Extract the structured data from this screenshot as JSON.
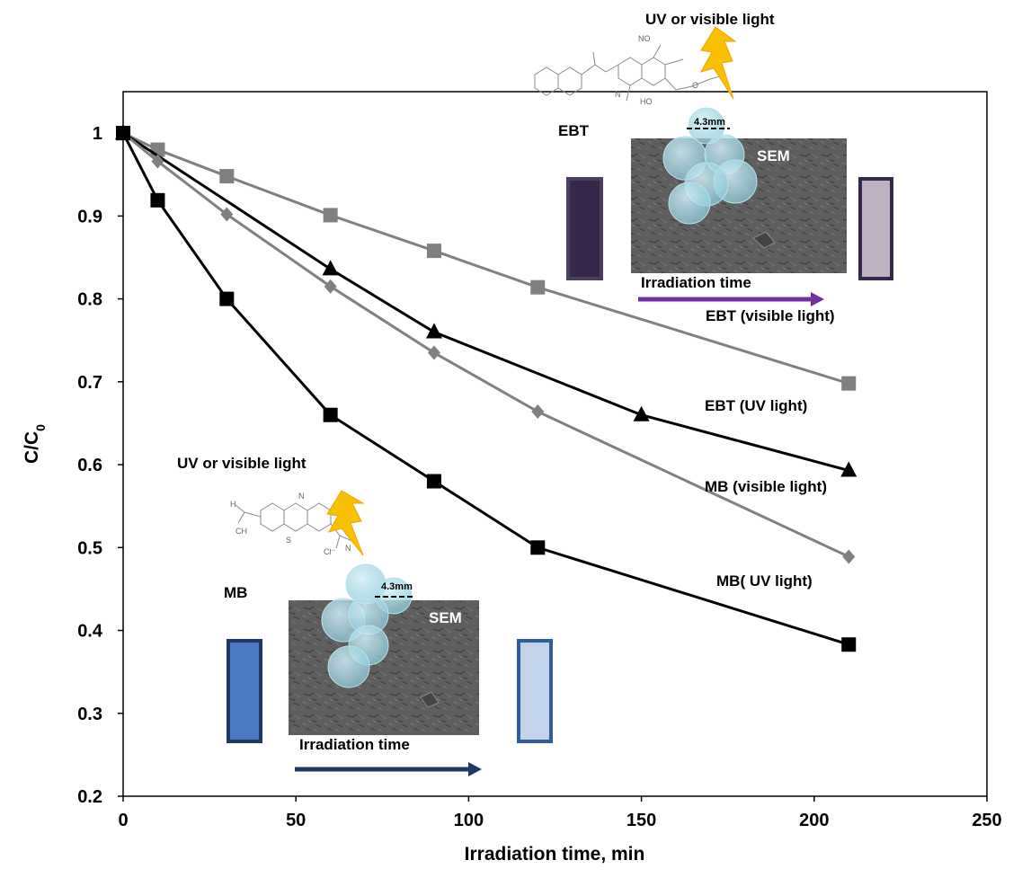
{
  "chart_data": {
    "type": "line",
    "xlabel": "Irradiation time, min",
    "ylabel": "C/C0",
    "ylabel_main": "C/C",
    "ylabel_sub": "0",
    "xlim": [
      0,
      250
    ],
    "ylim": [
      0.2,
      1.05
    ],
    "xticks": [
      "0",
      "50",
      "100",
      "150",
      "200",
      "250"
    ],
    "yticks": [
      "0.2",
      "0.3",
      "0.4",
      "0.5",
      "0.6",
      "0.7",
      "0.8",
      "0.9",
      "1"
    ],
    "grid": false,
    "series": [
      {
        "name": "EBT (visible light)",
        "color": "#808080",
        "marker": "square",
        "x": [
          0,
          10,
          30,
          60,
          90,
          120,
          210
        ],
        "y": [
          1.0,
          0.98,
          0.948,
          0.901,
          0.858,
          0.814,
          0.698
        ]
      },
      {
        "name": "EBT (UV light)",
        "color": "#000000",
        "marker": "triangle",
        "x": [
          0,
          60,
          90,
          150,
          210
        ],
        "y": [
          1.0,
          0.836,
          0.76,
          0.66,
          0.593
        ]
      },
      {
        "name": "MB (visible light)",
        "color": "#808080",
        "marker": "diamond",
        "x": [
          0,
          10,
          30,
          60,
          90,
          120,
          210
        ],
        "y": [
          1.0,
          0.966,
          0.902,
          0.815,
          0.735,
          0.664,
          0.489
        ]
      },
      {
        "name": "MB( UV light)",
        "color": "#000000",
        "marker": "square",
        "x": [
          0,
          10,
          30,
          60,
          90,
          120,
          210
        ],
        "y": [
          1.0,
          0.919,
          0.8,
          0.66,
          0.58,
          0.5,
          0.383
        ]
      }
    ]
  },
  "annotations": {
    "ebt_visible": "EBT (visible light)",
    "ebt_uv": "EBT (UV light)",
    "mb_visible": "MB (visible light)",
    "mb_uv": "MB( UV light)",
    "uv_or_visible_top": "UV or visible light",
    "uv_or_visible_left": "UV or visible light",
    "ebt": "EBT",
    "mb": "MB",
    "sem_top": "SEM",
    "sem_bottom": "SEM",
    "scale_top": "4.3mm",
    "scale_bottom": "4.3mm",
    "irradiation_top": "Irradiation time",
    "irradiation_bottom": "Irradiation time"
  },
  "colors": {
    "ebt_dark": "#35284a",
    "ebt_light": "#bcb2c2",
    "mb_dark": "#4a7ac1",
    "mb_light": "#c2d3ea",
    "purple_arrow": "#7030a0",
    "navy_arrow": "#1f3864",
    "bolt": "#f8c000",
    "bubble": "#9fd6e6"
  }
}
